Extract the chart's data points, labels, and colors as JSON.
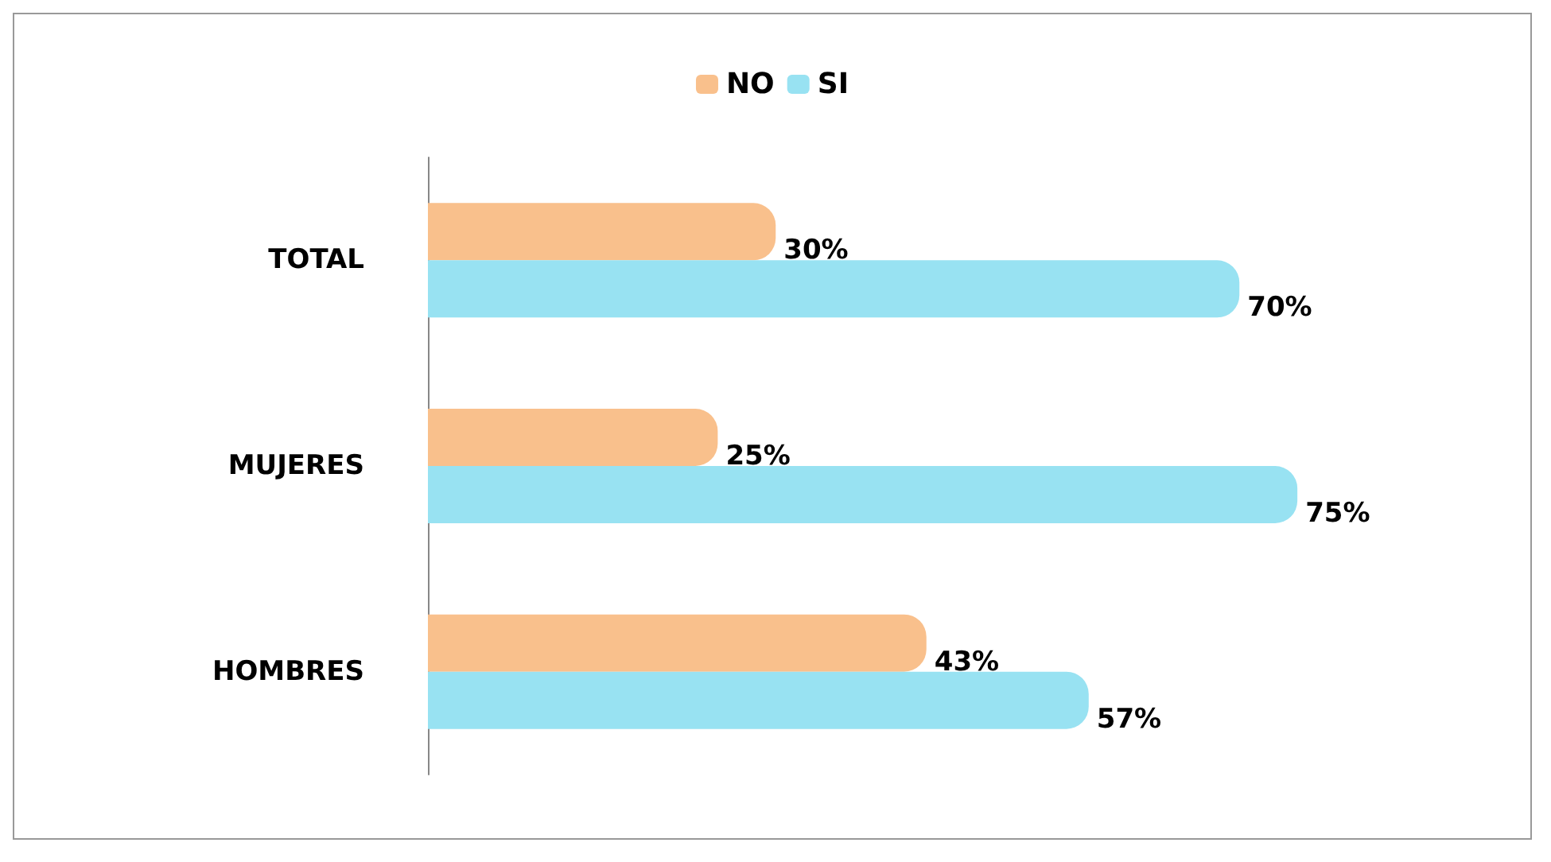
{
  "chart_data": {
    "type": "bar",
    "orientation": "horizontal",
    "categories": [
      "TOTAL",
      "MUJERES",
      "HOMBRES"
    ],
    "series": [
      {
        "name": "NO",
        "color": "#f9c08c",
        "values": [
          30,
          25,
          43
        ],
        "value_labels": [
          "30%",
          "25%",
          "43%"
        ]
      },
      {
        "name": "SI",
        "color": "#98e2f2",
        "values": [
          70,
          75,
          57
        ],
        "value_labels": [
          "70%",
          "75%",
          "57%"
        ]
      }
    ],
    "tick_labels": "y",
    "grid": false,
    "legend": "top"
  }
}
